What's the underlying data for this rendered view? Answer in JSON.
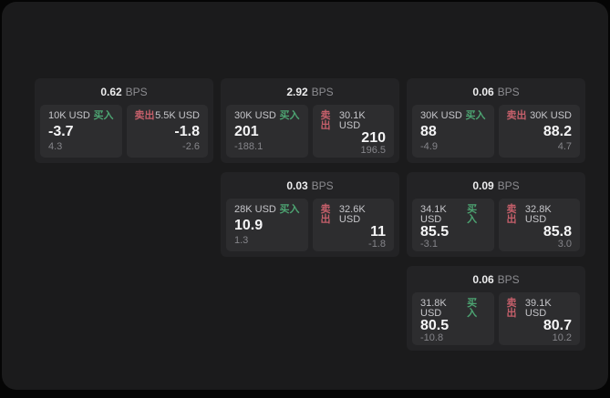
{
  "labels": {
    "bps_unit": "BPS",
    "buy": "买入",
    "sell": "卖出"
  },
  "colors": {
    "buy_green": "#4da472",
    "sell_red": "#c45f6a",
    "window_bg": "#1b1b1c",
    "card_bg": "#232325",
    "panel_bg": "#2d2d2f"
  },
  "cards": [
    {
      "col": 0,
      "row": 0,
      "bps": "0.62",
      "buy": {
        "amount": "10K USD",
        "price": "-3.7",
        "delta": "4.3"
      },
      "sell": {
        "amount": "5.5K USD",
        "price": "-1.8",
        "delta": "-2.6"
      }
    },
    {
      "col": 1,
      "row": 0,
      "bps": "2.92",
      "buy": {
        "amount": "30K USD",
        "price": "201",
        "delta": "-188.1"
      },
      "sell": {
        "amount": "30.1K USD",
        "price": "210",
        "delta": "196.5"
      }
    },
    {
      "col": 2,
      "row": 0,
      "bps": "0.06",
      "buy": {
        "amount": "30K USD",
        "price": "88",
        "delta": "-4.9"
      },
      "sell": {
        "amount": "30K USD",
        "price": "88.2",
        "delta": "4.7"
      }
    },
    {
      "col": 1,
      "row": 1,
      "bps": "0.03",
      "buy": {
        "amount": "28K USD",
        "price": "10.9",
        "delta": "1.3"
      },
      "sell": {
        "amount": "32.6K USD",
        "price": "11",
        "delta": "-1.8"
      }
    },
    {
      "col": 2,
      "row": 1,
      "bps": "0.09",
      "buy": {
        "amount": "34.1K USD",
        "price": "85.5",
        "delta": "-3.1"
      },
      "sell": {
        "amount": "32.8K USD",
        "price": "85.8",
        "delta": "3.0"
      }
    },
    {
      "col": 2,
      "row": 2,
      "bps": "0.06",
      "buy": {
        "amount": "31.8K USD",
        "price": "80.5",
        "delta": "-10.8"
      },
      "sell": {
        "amount": "39.1K USD",
        "price": "80.7",
        "delta": "10.2"
      }
    }
  ]
}
